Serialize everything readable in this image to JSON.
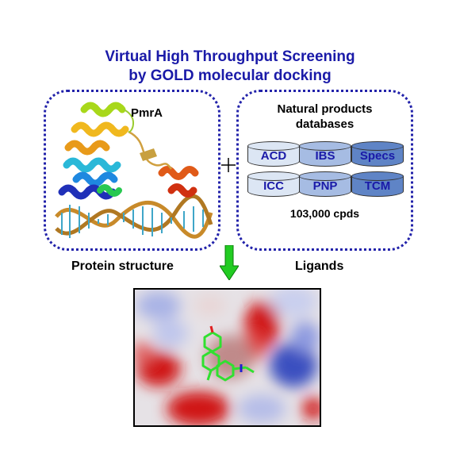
{
  "title": {
    "line1": "Virtual High Throughput Screening",
    "line2": "by GOLD molecular docking"
  },
  "protein_panel": {
    "label": "PmrA",
    "caption": "Protein structure"
  },
  "ligand_panel": {
    "title_line1": "Natural products",
    "title_line2": "databases",
    "databases": [
      {
        "name": "ACD",
        "color": "#dce6f4"
      },
      {
        "name": "IBS",
        "color": "#a6bce3"
      },
      {
        "name": "Specs",
        "color": "#5f84c6"
      },
      {
        "name": "ICC",
        "color": "#dce6f4"
      },
      {
        "name": "PNP",
        "color": "#a6bce3"
      },
      {
        "name": "TCM",
        "color": "#5f84c6"
      }
    ],
    "compound_count": "103,000 cpds",
    "caption": "Ligands"
  },
  "colors": {
    "title": "#1a1aa8",
    "panel_border": "#2222aa",
    "arrow": "#22cc22",
    "surface_positive": "#3a4fc0",
    "surface_negative": "#d01818"
  }
}
